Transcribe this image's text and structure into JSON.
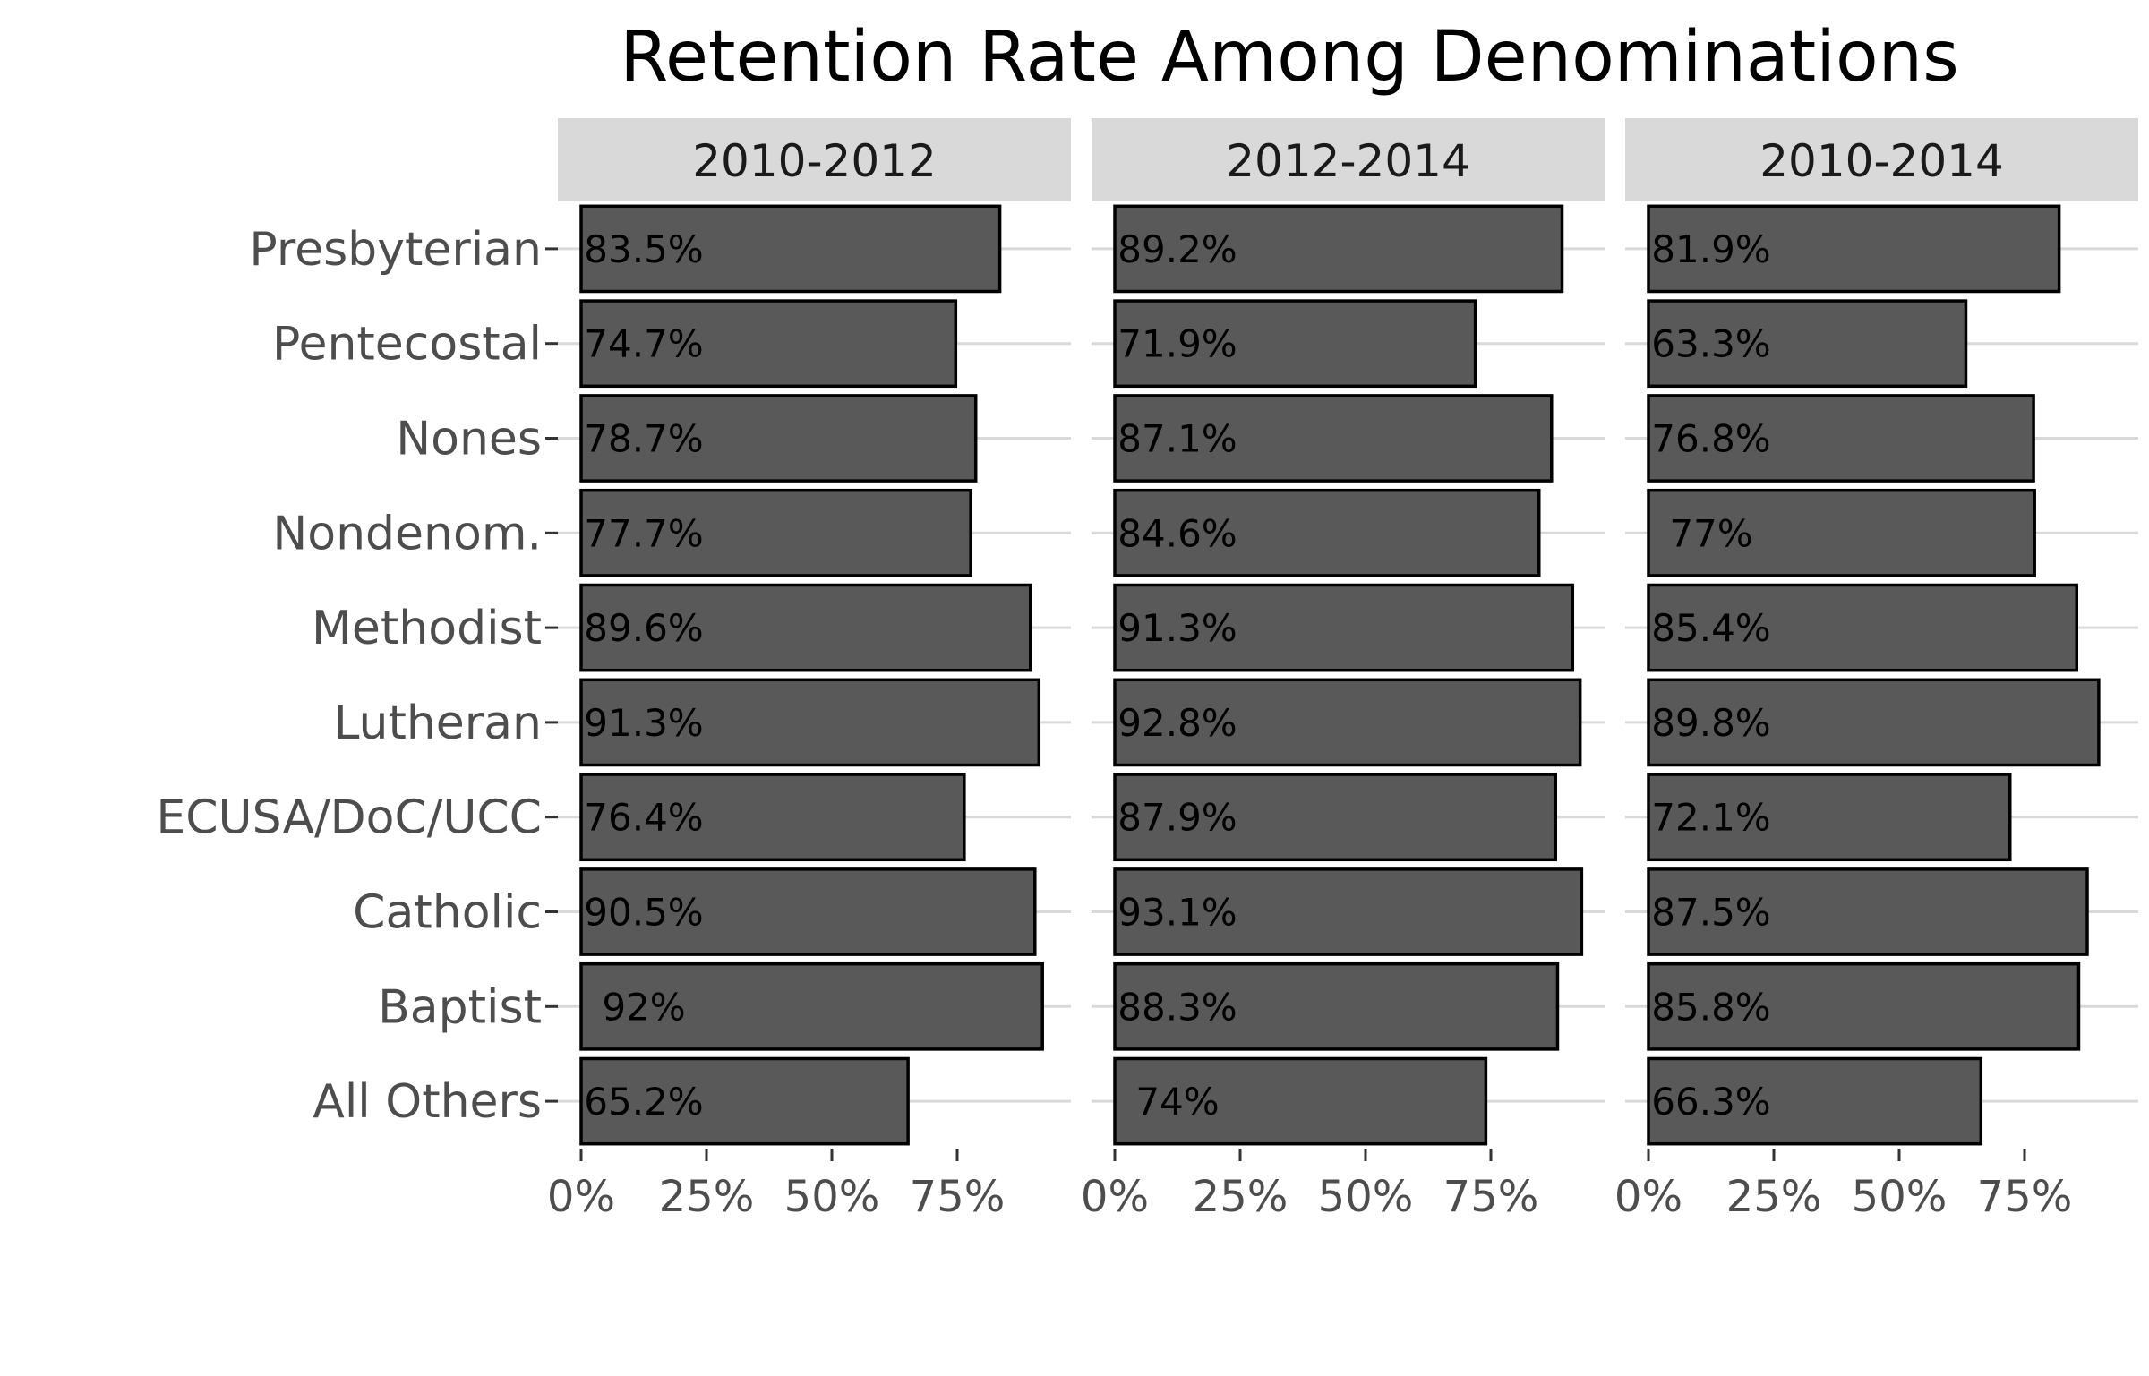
{
  "chart_data": {
    "type": "bar",
    "orientation": "horizontal",
    "title": "Retention Rate Among Denominations",
    "xlabel": "",
    "ylabel": "",
    "categories": [
      "Presbyterian",
      "Pentecostal",
      "Nones",
      "Nondenom.",
      "Methodist",
      "Lutheran",
      "ECUSA/DoC/UCC",
      "Catholic",
      "Baptist",
      "All Others"
    ],
    "xlim": [
      0,
      0.95
    ],
    "x_ticks": [
      0,
      0.25,
      0.5,
      0.75
    ],
    "x_tick_labels": [
      "0%",
      "25%",
      "50%",
      "75%"
    ],
    "grid": "major-horizontal",
    "legend": "none",
    "bar_color": "#595959",
    "bar_border_color": "#000000",
    "strip_color": "#d9d9d9",
    "grid_color": "#d9d9d9",
    "panels": [
      {
        "name": "2010-2012",
        "values": [
          0.835,
          0.747,
          0.787,
          0.777,
          0.896,
          0.913,
          0.764,
          0.905,
          0.92,
          0.652
        ],
        "labels": [
          "83.5%",
          "74.7%",
          "78.7%",
          "77.7%",
          "89.6%",
          "91.3%",
          "76.4%",
          "90.5%",
          "92%",
          "65.2%"
        ]
      },
      {
        "name": "2012-2014",
        "values": [
          0.892,
          0.719,
          0.871,
          0.846,
          0.913,
          0.928,
          0.879,
          0.931,
          0.883,
          0.74
        ],
        "labels": [
          "89.2%",
          "71.9%",
          "87.1%",
          "84.6%",
          "91.3%",
          "92.8%",
          "87.9%",
          "93.1%",
          "88.3%",
          "74%"
        ]
      },
      {
        "name": "2010-2014",
        "values": [
          0.819,
          0.633,
          0.768,
          0.77,
          0.854,
          0.898,
          0.721,
          0.875,
          0.858,
          0.663
        ],
        "labels": [
          "81.9%",
          "63.3%",
          "76.8%",
          "77%",
          "85.4%",
          "89.8%",
          "72.1%",
          "87.5%",
          "85.8%",
          "66.3%"
        ]
      }
    ]
  }
}
